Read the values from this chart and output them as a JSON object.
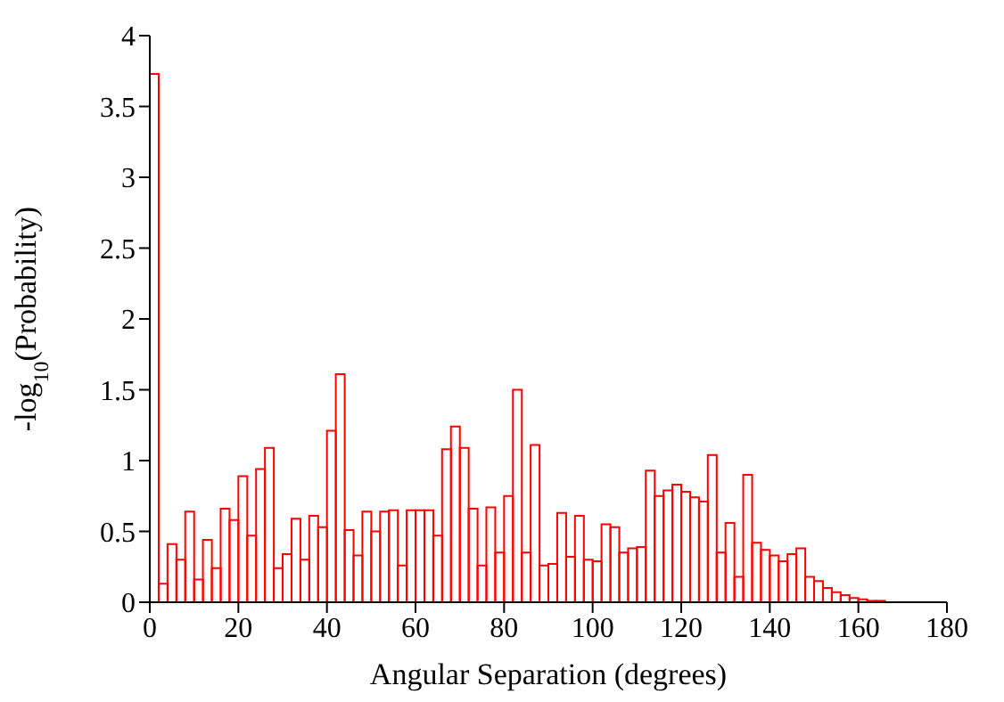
{
  "chart_data": {
    "type": "histogram",
    "xlabel": "Angular Separation (degrees)",
    "ylabel": "-log$_{10}$(Probability)",
    "bins": [
      0,
      2,
      4,
      6,
      8,
      10,
      12,
      14,
      16,
      18,
      20,
      22,
      24,
      26,
      28,
      30,
      32,
      34,
      36,
      38,
      40,
      42,
      44,
      46,
      48,
      50,
      52,
      54,
      56,
      58,
      60,
      62,
      64,
      66,
      68,
      70,
      72,
      74,
      76,
      78,
      80,
      82,
      84,
      86,
      88,
      90,
      92,
      94,
      96,
      98,
      100,
      102,
      104,
      106,
      108,
      110,
      112,
      114,
      116,
      118,
      120,
      122,
      124,
      126,
      128,
      130,
      132,
      134,
      136,
      138,
      140,
      142,
      144,
      146,
      148,
      150,
      152,
      154,
      156,
      158,
      160,
      162,
      164,
      166,
      168
    ],
    "values": [
      3.73,
      0.13,
      0.41,
      0.3,
      0.64,
      0.16,
      0.44,
      0.24,
      0.66,
      0.58,
      0.89,
      0.47,
      0.94,
      1.09,
      0.24,
      0.34,
      0.59,
      0.3,
      0.61,
      0.53,
      1.21,
      1.61,
      0.51,
      0.33,
      0.64,
      0.5,
      0.64,
      0.65,
      0.26,
      0.65,
      0.65,
      0.65,
      0.47,
      1.08,
      1.24,
      1.09,
      0.66,
      0.26,
      0.67,
      0.35,
      0.75,
      1.5,
      0.35,
      1.11,
      0.26,
      0.27,
      0.63,
      0.32,
      0.61,
      0.3,
      0.29,
      0.55,
      0.53,
      0.35,
      0.38,
      0.39,
      0.93,
      0.75,
      0.79,
      0.83,
      0.78,
      0.74,
      0.71,
      1.04,
      0.35,
      0.56,
      0.18,
      0.9,
      0.42,
      0.37,
      0.33,
      0.29,
      0.34,
      0.38,
      0.18,
      0.15,
      0.1,
      0.07,
      0.05,
      0.03,
      0.02,
      0.01,
      0.01,
      0
    ],
    "color": "#ff0000",
    "xlim": [
      0,
      180
    ],
    "xticks": [
      0,
      20,
      40,
      60,
      80,
      100,
      120,
      140,
      160,
      180
    ],
    "ylim": [
      0,
      4
    ],
    "yticks": [
      0,
      0.5,
      1,
      1.5,
      2,
      2.5,
      3,
      3.5,
      4
    ],
    "grid": false,
    "legend": false
  }
}
